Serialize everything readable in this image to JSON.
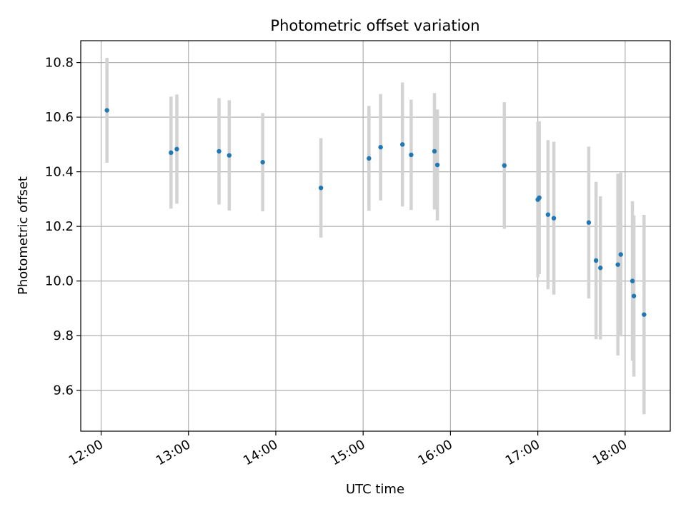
{
  "chart_data": {
    "type": "scatter",
    "title": "Photometric offset variation",
    "xlabel": "UTC time",
    "ylabel": "Photometric offset",
    "x_ticks": [
      "12:00",
      "13:00",
      "14:00",
      "15:00",
      "16:00",
      "17:00",
      "18:00"
    ],
    "y_ticks": [
      "9.6",
      "9.8",
      "10.0",
      "10.2",
      "10.4",
      "10.6",
      "10.8"
    ],
    "xlim": [
      "11:46",
      "18:31"
    ],
    "ylim": [
      9.45,
      10.88
    ],
    "grid": true,
    "colors": {
      "point": "#1f77b4",
      "errorbar": "#d3d3d3",
      "grid": "#b0b0b0"
    },
    "points": [
      {
        "time": "12:04",
        "y": 10.625,
        "err": 0.192
      },
      {
        "time": "12:48",
        "y": 10.47,
        "err": 0.205
      },
      {
        "time": "12:52",
        "y": 10.483,
        "err": 0.2
      },
      {
        "time": "13:21",
        "y": 10.475,
        "err": 0.195
      },
      {
        "time": "13:28",
        "y": 10.46,
        "err": 0.202
      },
      {
        "time": "13:51",
        "y": 10.435,
        "err": 0.18
      },
      {
        "time": "14:31",
        "y": 10.341,
        "err": 0.182
      },
      {
        "time": "15:04",
        "y": 10.449,
        "err": 0.192
      },
      {
        "time": "15:12",
        "y": 10.49,
        "err": 0.195
      },
      {
        "time": "15:27",
        "y": 10.5,
        "err": 0.227
      },
      {
        "time": "15:33",
        "y": 10.462,
        "err": 0.202
      },
      {
        "time": "15:49",
        "y": 10.475,
        "err": 0.213
      },
      {
        "time": "15:51",
        "y": 10.425,
        "err": 0.203
      },
      {
        "time": "16:37",
        "y": 10.423,
        "err": 0.232
      },
      {
        "time": "17:00",
        "y": 10.298,
        "err": 0.285
      },
      {
        "time": "17:01",
        "y": 10.305,
        "err": 0.28
      },
      {
        "time": "17:07",
        "y": 10.243,
        "err": 0.273
      },
      {
        "time": "17:11",
        "y": 10.23,
        "err": 0.28
      },
      {
        "time": "17:35",
        "y": 10.214,
        "err": 0.278
      },
      {
        "time": "17:40",
        "y": 10.075,
        "err": 0.288
      },
      {
        "time": "17:43",
        "y": 10.048,
        "err": 0.262
      },
      {
        "time": "17:55",
        "y": 10.06,
        "err": 0.333
      },
      {
        "time": "17:57",
        "y": 10.097,
        "err": 0.3
      },
      {
        "time": "18:05",
        "y": 10.0,
        "err": 0.292
      },
      {
        "time": "18:06",
        "y": 9.945,
        "err": 0.295
      },
      {
        "time": "18:13",
        "y": 9.877,
        "err": 0.365
      }
    ]
  }
}
